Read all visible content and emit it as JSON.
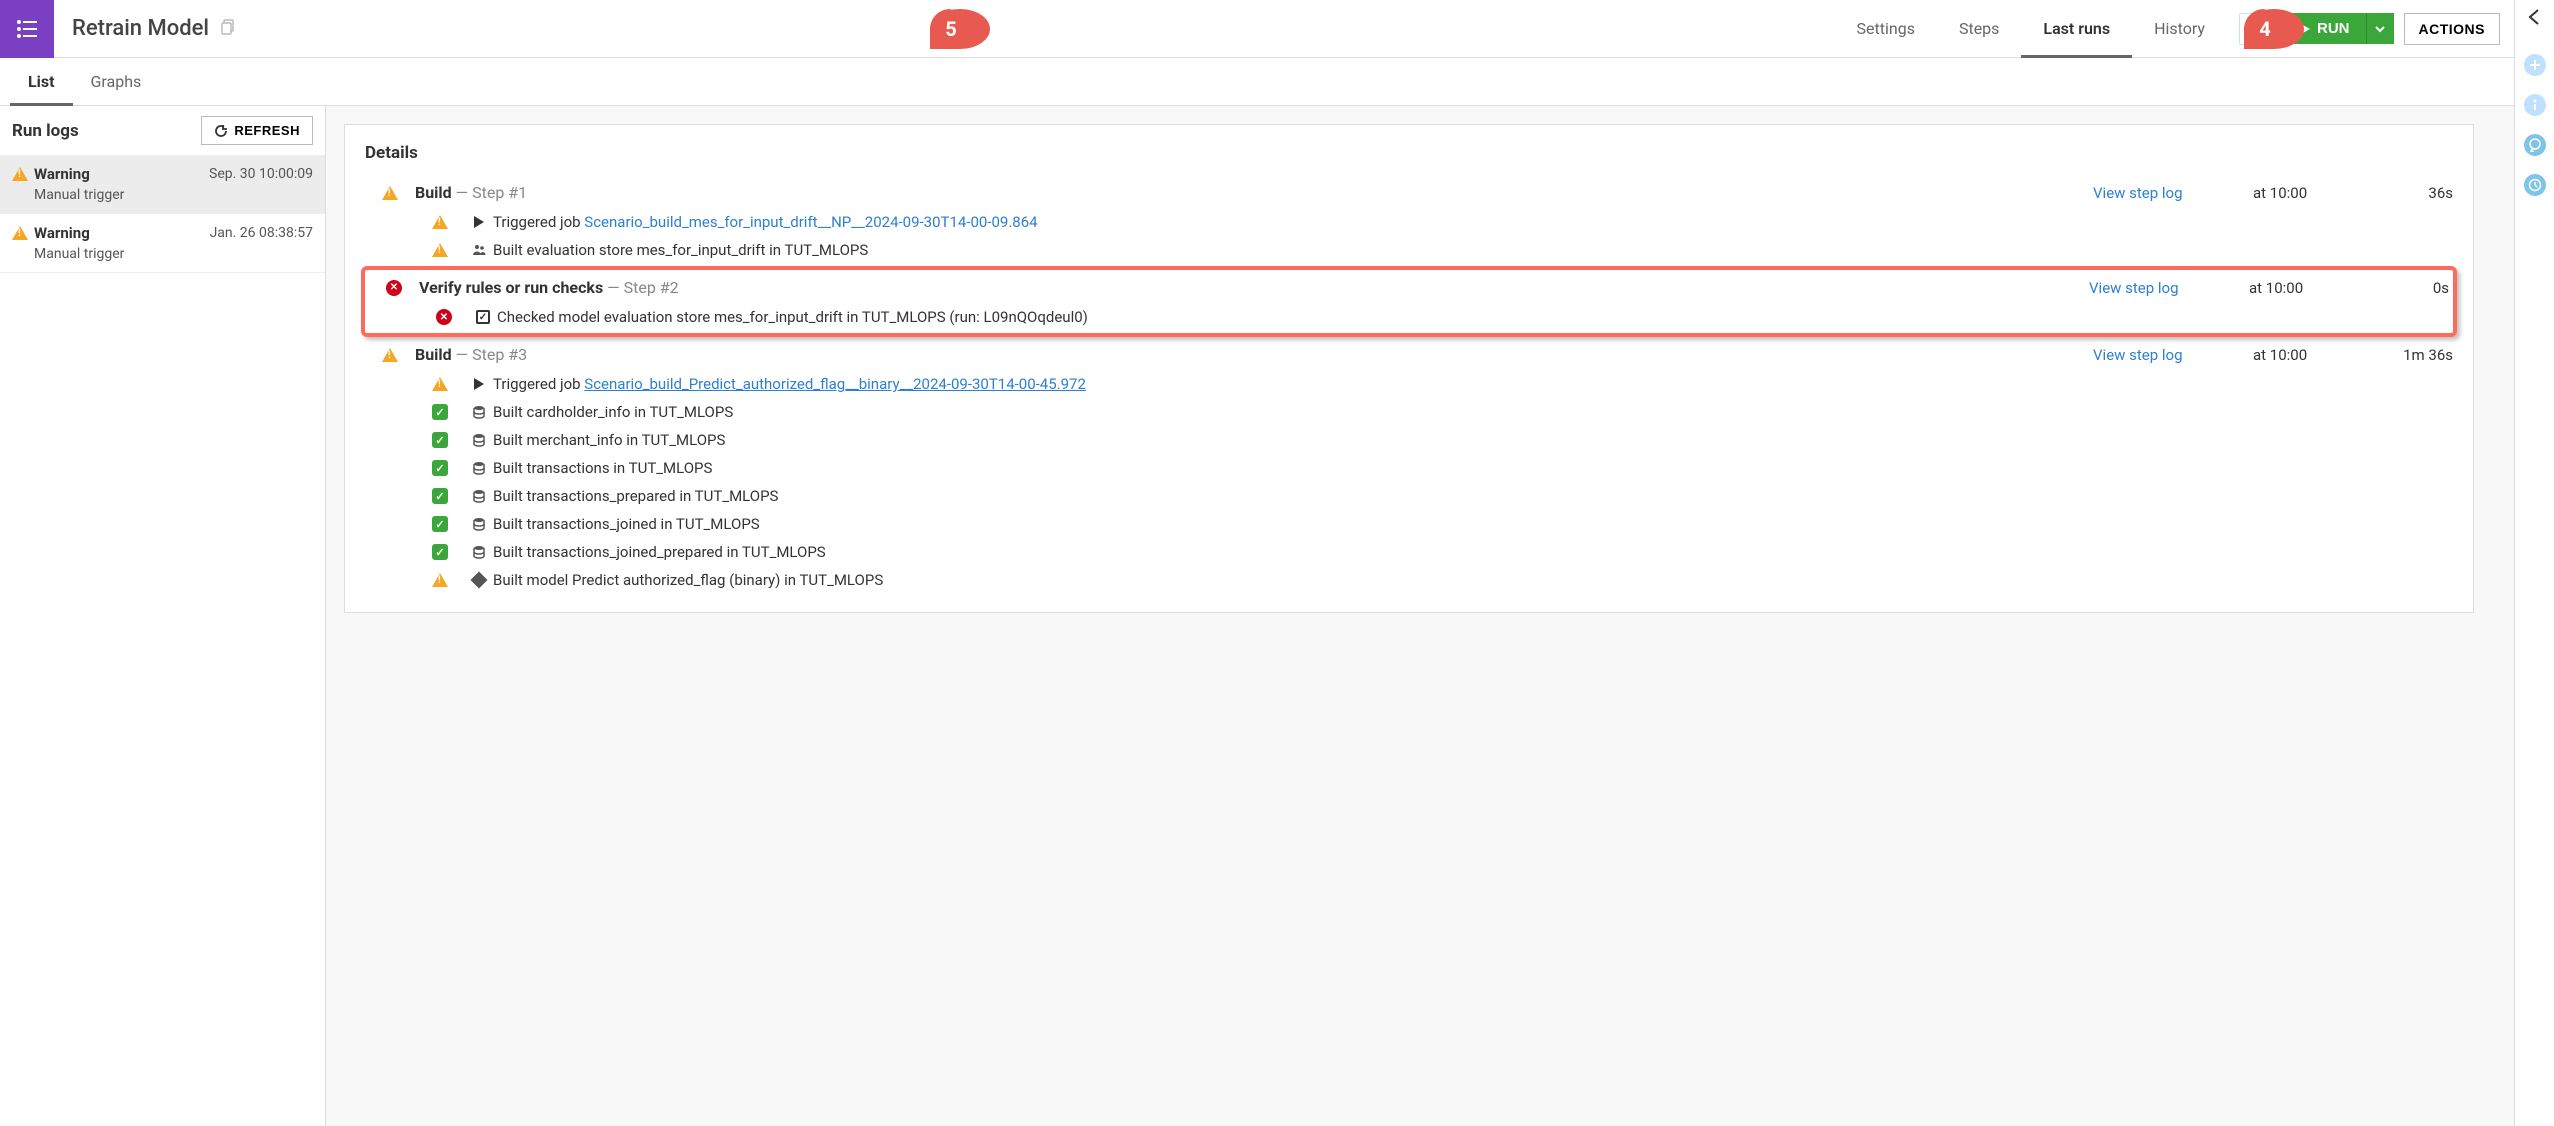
{
  "colors": {
    "accent_purple": "#7b3fc4",
    "accent_green": "#3ba73b",
    "link_blue": "#2d7fd1",
    "warning_orange": "#f5a623",
    "error_red": "#d0021b",
    "highlight_red": "#ff6b5b",
    "callout_red": "#e85a4f"
  },
  "header": {
    "title": "Retrain Model",
    "nav": {
      "settings": "Settings",
      "steps": "Steps",
      "last_runs": "Last runs",
      "history": "History"
    },
    "run_label": "RUN",
    "actions_label": "ACTIONS"
  },
  "sub_tabs": {
    "list": "List",
    "graphs": "Graphs"
  },
  "sidebar": {
    "title": "Run logs",
    "refresh_label": "REFRESH",
    "items": [
      {
        "status": "Warning",
        "time": "Sep. 30 10:00:09",
        "sub": "Manual trigger",
        "selected": true
      },
      {
        "status": "Warning",
        "time": "Jan. 26 08:38:57",
        "sub": "Manual trigger",
        "selected": false
      }
    ]
  },
  "details": {
    "heading": "Details",
    "steps": [
      {
        "icon": "warning",
        "name": "Build",
        "num": "Step #1",
        "view_log": "View step log",
        "time": "at 10:00",
        "duration": "36s",
        "highlight": false,
        "subs": [
          {
            "icon": "warning",
            "symbol": "play",
            "prefix": "Triggered job ",
            "link": "Scenario_build_mes_for_input_drift__NP__2024-09-30T14-00-09.864",
            "link_underlined": false
          },
          {
            "icon": "warning",
            "symbol": "people",
            "text": "Built evaluation store mes_for_input_drift in TUT_MLOPS"
          }
        ]
      },
      {
        "icon": "error",
        "name": "Verify rules or run checks",
        "num": "Step #2",
        "view_log": "View step log",
        "time": "at 10:00",
        "duration": "0s",
        "highlight": true,
        "subs": [
          {
            "icon": "error",
            "symbol": "checkbox",
            "text": "Checked model evaluation store mes_for_input_drift in TUT_MLOPS (run: L09nQOqdeul0)"
          }
        ]
      },
      {
        "icon": "warning",
        "name": "Build",
        "num": "Step #3",
        "view_log": "View step log",
        "time": "at 10:00",
        "duration": "1m 36s",
        "highlight": false,
        "subs": [
          {
            "icon": "warning",
            "symbol": "play",
            "prefix": "Triggered job ",
            "link": "Scenario_build_Predict_authorized_flag__binary__2024-09-30T14-00-45.972",
            "link_underlined": true
          },
          {
            "icon": "success",
            "symbol": "db",
            "text": "Built cardholder_info in TUT_MLOPS"
          },
          {
            "icon": "success",
            "symbol": "db",
            "text": "Built merchant_info in TUT_MLOPS"
          },
          {
            "icon": "success",
            "symbol": "db",
            "text": "Built transactions in TUT_MLOPS"
          },
          {
            "icon": "success",
            "symbol": "db",
            "text": "Built transactions_prepared in TUT_MLOPS"
          },
          {
            "icon": "success",
            "symbol": "db",
            "text": "Built transactions_joined in TUT_MLOPS"
          },
          {
            "icon": "success",
            "symbol": "db",
            "text": "Built transactions_joined_prepared in TUT_MLOPS"
          },
          {
            "icon": "warning",
            "symbol": "diamond",
            "text": "Built model Predict authorized_flag (binary) in TUT_MLOPS"
          }
        ]
      }
    ]
  },
  "callouts": {
    "c4": "4",
    "c5": "5"
  }
}
